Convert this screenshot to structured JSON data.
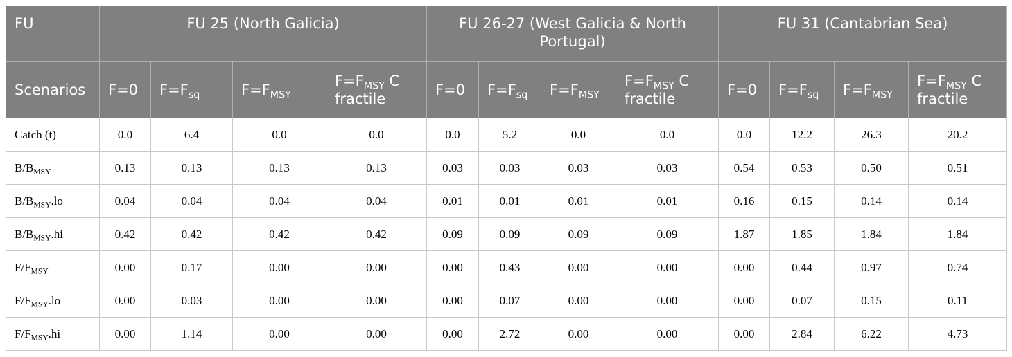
{
  "table": {
    "header": {
      "fu_label": "FU",
      "groups": [
        "FU 25 (North Galicia)",
        "FU 26-27 (West Galicia & North Portugal)",
        "FU 31 (Cantabrian Sea)"
      ],
      "scenarios_label": "Scenarios",
      "scenarios": [
        [
          {
            "text": "F=0"
          },
          {
            "text": "F=F",
            "sub": "sq"
          },
          {
            "text": "F=F",
            "sub": "MSY"
          },
          {
            "text": "F=F",
            "sub": "MSY",
            "tail": " C fractile"
          }
        ],
        [
          {
            "text": "F=0"
          },
          {
            "text": "F=F",
            "sub": "sq"
          },
          {
            "text": "F=F",
            "sub": "MSY"
          },
          {
            "text": "F=F",
            "sub": "MSY",
            "tail": " C fractile"
          }
        ],
        [
          {
            "text": "F=0"
          },
          {
            "text": "F=F",
            "sub": "sq"
          },
          {
            "text": "F=F",
            "sub": "MSY"
          },
          {
            "text": "F=F",
            "sub": "MSY",
            "tail": " C fractile"
          }
        ]
      ]
    },
    "rows": [
      {
        "label": {
          "text": "Catch (t)"
        },
        "values": [
          "0.0",
          "6.4",
          "0.0",
          "0.0",
          "0.0",
          "5.2",
          "0.0",
          "0.0",
          "0.0",
          "12.2",
          "26.3",
          "20.2"
        ]
      },
      {
        "label": {
          "text": "B/B",
          "sub": "MSY"
        },
        "values": [
          "0.13",
          "0.13",
          "0.13",
          "0.13",
          "0.03",
          "0.03",
          "0.03",
          "0.03",
          "0.54",
          "0.53",
          "0.50",
          "0.51"
        ]
      },
      {
        "label": {
          "text": "B/B",
          "sub": "MSY",
          "tail": ".lo"
        },
        "values": [
          "0.04",
          "0.04",
          "0.04",
          "0.04",
          "0.01",
          "0.01",
          "0.01",
          "0.01",
          "0.16",
          "0.15",
          "0.14",
          "0.14"
        ]
      },
      {
        "label": {
          "text": "B/B",
          "sub": "MSY",
          "tail": ".hi"
        },
        "values": [
          "0.42",
          "0.42",
          "0.42",
          "0.42",
          "0.09",
          "0.09",
          "0.09",
          "0.09",
          "1.87",
          "1.85",
          "1.84",
          "1.84"
        ]
      },
      {
        "label": {
          "text": "F/F",
          "sub": "MSY"
        },
        "values": [
          "0.00",
          "0.17",
          "0.00",
          "0.00",
          "0.00",
          "0.43",
          "0.00",
          "0.00",
          "0.00",
          "0.44",
          "0.97",
          "0.74"
        ]
      },
      {
        "label": {
          "text": "F/F",
          "sub": "MSY",
          "tail": ".lo"
        },
        "values": [
          "0.00",
          "0.03",
          "0.00",
          "0.00",
          "0.00",
          "0.07",
          "0.00",
          "0.00",
          "0.00",
          "0.07",
          "0.15",
          "0.11"
        ]
      },
      {
        "label": {
          "text": "F/F",
          "sub": "MSY",
          "tail": ".hi"
        },
        "values": [
          "0.00",
          "1.14",
          "0.00",
          "0.00",
          "0.00",
          "2.72",
          "0.00",
          "0.00",
          "0.00",
          "2.84",
          "6.22",
          "4.73"
        ]
      }
    ]
  }
}
